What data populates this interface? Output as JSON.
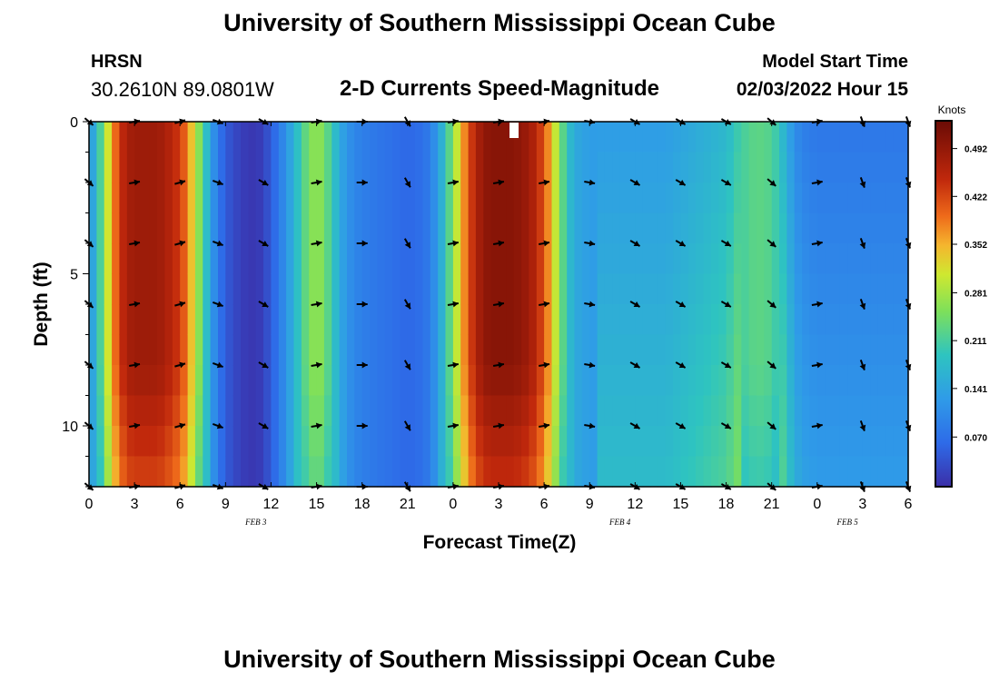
{
  "header": {
    "title": "University of Southern Mississippi Ocean Cube",
    "station": "HRSN",
    "coords": "30.2610N  89.0801W",
    "subtitle": "2-D Currents Speed-Magnitude",
    "start_label": "Model Start Time",
    "start_value": "02/03/2022 Hour 15"
  },
  "footer": {
    "title": "University of Southern Mississippi Ocean Cube"
  },
  "chart_data": {
    "type": "heatmap",
    "title": "2-D Currents Speed-Magnitude",
    "xlabel": "Forecast Time(Z)",
    "ylabel": "Depth (ft)",
    "x_ticks": [
      "0",
      "3",
      "6",
      "9",
      "12",
      "15",
      "18",
      "21",
      "0",
      "3",
      "6",
      "9",
      "12",
      "15",
      "18",
      "21",
      "0",
      "3",
      "6"
    ],
    "x_range_hours": [
      0,
      54
    ],
    "day_labels": [
      {
        "hour": 11,
        "text": "FEB 3"
      },
      {
        "hour": 35,
        "text": "FEB 4"
      },
      {
        "hour": 50,
        "text": "FEB 5"
      }
    ],
    "y_ticks": [
      0,
      5,
      10
    ],
    "ylim": [
      0,
      12
    ],
    "y_inverted": true,
    "colorbar": {
      "unit": "Knots",
      "ticks": [
        "0.492",
        "0.422",
        "0.352",
        "0.281",
        "0.211",
        "0.141",
        "0.070"
      ],
      "tick_values": [
        0.492,
        0.422,
        0.352,
        0.281,
        0.211,
        0.141,
        0.07
      ],
      "range": [
        0.0,
        0.53
      ]
    },
    "speed_by_hour": [
      {
        "h": 0,
        "v": 0.12
      },
      {
        "h": 0.5,
        "v": 0.17
      },
      {
        "h": 1,
        "v": 0.26
      },
      {
        "h": 1.5,
        "v": 0.36
      },
      {
        "h": 2,
        "v": 0.43
      },
      {
        "h": 2.5,
        "v": 0.47
      },
      {
        "h": 3,
        "v": 0.48
      },
      {
        "h": 3.5,
        "v": 0.48
      },
      {
        "h": 4,
        "v": 0.48
      },
      {
        "h": 4.5,
        "v": 0.48
      },
      {
        "h": 5,
        "v": 0.47
      },
      {
        "h": 5.5,
        "v": 0.45
      },
      {
        "h": 6,
        "v": 0.43
      },
      {
        "h": 6.5,
        "v": 0.38
      },
      {
        "h": 7,
        "v": 0.3
      },
      {
        "h": 7.5,
        "v": 0.22
      },
      {
        "h": 8,
        "v": 0.14
      },
      {
        "h": 8.5,
        "v": 0.08
      },
      {
        "h": 9,
        "v": 0.05
      },
      {
        "h": 9.5,
        "v": 0.03
      },
      {
        "h": 10,
        "v": 0.02
      },
      {
        "h": 10.5,
        "v": 0.01
      },
      {
        "h": 11,
        "v": 0.01
      },
      {
        "h": 11.5,
        "v": 0.02
      },
      {
        "h": 12,
        "v": 0.05
      },
      {
        "h": 12.5,
        "v": 0.08
      },
      {
        "h": 13,
        "v": 0.12
      },
      {
        "h": 13.5,
        "v": 0.16
      },
      {
        "h": 14,
        "v": 0.21
      },
      {
        "h": 14.5,
        "v": 0.25
      },
      {
        "h": 15,
        "v": 0.27
      },
      {
        "h": 15.5,
        "v": 0.25
      },
      {
        "h": 16,
        "v": 0.2
      },
      {
        "h": 16.5,
        "v": 0.15
      },
      {
        "h": 17,
        "v": 0.12
      },
      {
        "h": 17.5,
        "v": 0.1
      },
      {
        "h": 18,
        "v": 0.09
      },
      {
        "h": 19,
        "v": 0.08
      },
      {
        "h": 20,
        "v": 0.07
      },
      {
        "h": 21,
        "v": 0.06
      },
      {
        "h": 22,
        "v": 0.07
      },
      {
        "h": 22.5,
        "v": 0.09
      },
      {
        "h": 23,
        "v": 0.13
      },
      {
        "h": 23.5,
        "v": 0.19
      },
      {
        "h": 24,
        "v": 0.26
      },
      {
        "h": 24.5,
        "v": 0.34
      },
      {
        "h": 25,
        "v": 0.41
      },
      {
        "h": 25.5,
        "v": 0.46
      },
      {
        "h": 26,
        "v": 0.49
      },
      {
        "h": 26.5,
        "v": 0.5
      },
      {
        "h": 27,
        "v": 0.5
      },
      {
        "h": 27.5,
        "v": 0.5
      },
      {
        "h": 28,
        "v": 0.5
      },
      {
        "h": 28.5,
        "v": 0.49
      },
      {
        "h": 29,
        "v": 0.48
      },
      {
        "h": 29.5,
        "v": 0.45
      },
      {
        "h": 30,
        "v": 0.41
      },
      {
        "h": 30.5,
        "v": 0.34
      },
      {
        "h": 31,
        "v": 0.26
      },
      {
        "h": 31.5,
        "v": 0.19
      },
      {
        "h": 32,
        "v": 0.15
      },
      {
        "h": 33,
        "v": 0.13
      },
      {
        "h": 34,
        "v": 0.13
      },
      {
        "h": 35,
        "v": 0.13
      },
      {
        "h": 36,
        "v": 0.13
      },
      {
        "h": 37,
        "v": 0.13
      },
      {
        "h": 38,
        "v": 0.13
      },
      {
        "h": 39,
        "v": 0.14
      },
      {
        "h": 40,
        "v": 0.15
      },
      {
        "h": 41,
        "v": 0.16
      },
      {
        "h": 42,
        "v": 0.17
      },
      {
        "h": 42.5,
        "v": 0.19
      },
      {
        "h": 43,
        "v": 0.21
      },
      {
        "h": 44,
        "v": 0.23
      },
      {
        "h": 45,
        "v": 0.22
      },
      {
        "h": 45.5,
        "v": 0.19
      },
      {
        "h": 46,
        "v": 0.15
      },
      {
        "h": 46.5,
        "v": 0.11
      },
      {
        "h": 47,
        "v": 0.09
      },
      {
        "h": 48,
        "v": 0.08
      },
      {
        "h": 50,
        "v": 0.08
      },
      {
        "h": 52,
        "v": 0.08
      },
      {
        "h": 54,
        "v": 0.08
      }
    ],
    "arrow_times": [
      0,
      3,
      6,
      8.5,
      11.5,
      15,
      18,
      21,
      24,
      27,
      30,
      33,
      36,
      39,
      42,
      45,
      48,
      51,
      54
    ],
    "arrow_depths": [
      0,
      2,
      4,
      6,
      8,
      10,
      12
    ],
    "arrow_angles_deg": [
      -40,
      10,
      15,
      -20,
      -30,
      10,
      0,
      -60,
      10,
      10,
      10,
      -10,
      -30,
      -30,
      -30,
      -40,
      10,
      -70,
      -70
    ]
  }
}
